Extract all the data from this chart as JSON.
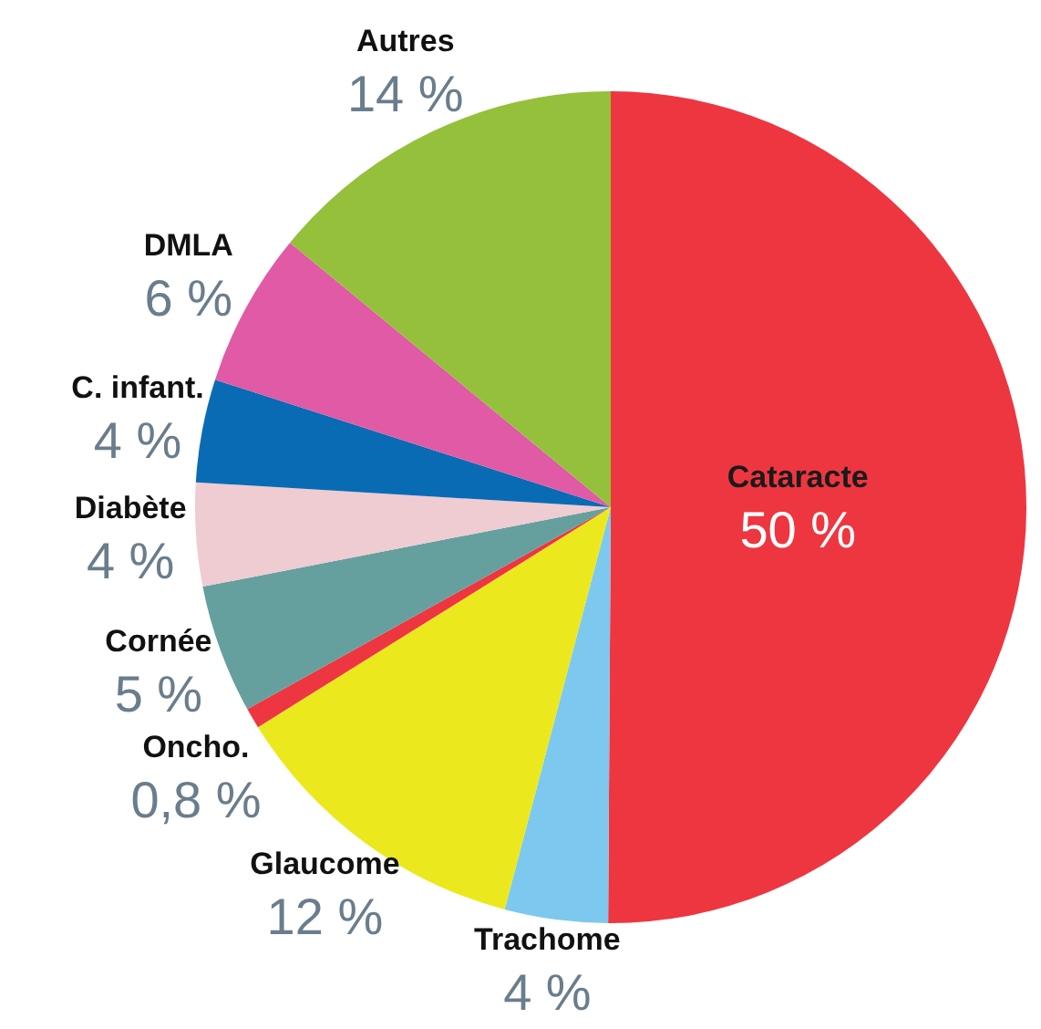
{
  "chart_data": {
    "type": "pie",
    "categories": [
      "Cataracte",
      "Trachome",
      "Glaucome",
      "Oncho.",
      "Cornée",
      "Diabète",
      "C. infant.",
      "DMLA",
      "Autres"
    ],
    "values": [
      50,
      4,
      12,
      0.8,
      5,
      4,
      4,
      6,
      14
    ],
    "value_labels": [
      "50 %",
      "4 %",
      "12 %",
      "0,8 %",
      "5 %",
      "4 %",
      "4 %",
      "6 %",
      "14 %"
    ],
    "colors": [
      "#ee3640",
      "#7dc8ee",
      "#ece81e",
      "#ee3640",
      "#65a09f",
      "#efcbd2",
      "#0a6bb5",
      "#e05aa5",
      "#95c03c"
    ],
    "legend": false
  }
}
